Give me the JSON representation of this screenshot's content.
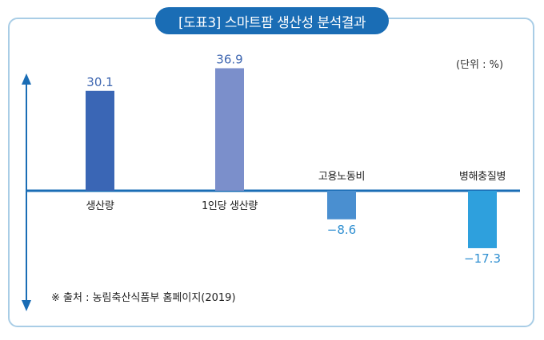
{
  "title": "[도표3] 스마트팜 생산성 분석결과",
  "unit_label": "(단위 : %)",
  "source_note": "※ 출처 : 농림축산식품부 홈페이지(2019)",
  "colors": {
    "frame": "#a9cde6",
    "title_bg": "#1a6db5",
    "axis": "#1a6db5",
    "positive_label": "#3f67b1",
    "negative_label": "#2f8fd1"
  },
  "chart_data": {
    "type": "bar",
    "categories": [
      "생산량",
      "1인당 생산량",
      "고용노동비",
      "병해충질병"
    ],
    "values": [
      30.1,
      36.9,
      -8.6,
      -17.3
    ],
    "value_labels": [
      "30.1",
      "36.9",
      "−8.6",
      "−17.3"
    ],
    "bar_colors": [
      "#3a66b5",
      "#7b8fcb",
      "#4a8fd0",
      "#2ea0dd"
    ],
    "ylim": [
      -25,
      40
    ],
    "grid": false
  }
}
